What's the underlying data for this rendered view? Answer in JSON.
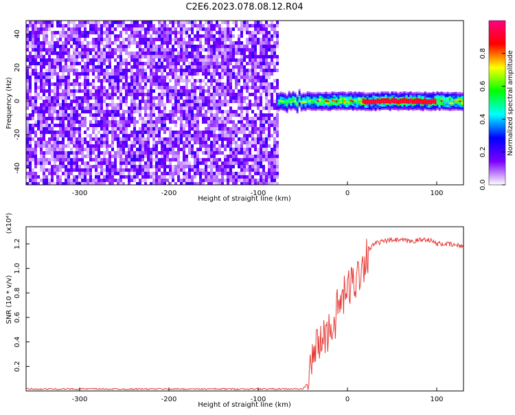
{
  "title": "C2E6.2023.078.08.12.R04",
  "chart_data": [
    {
      "type": "heatmap",
      "xlabel": "Height of straight line (km)",
      "ylabel": "Frequency (Hz)",
      "xlim": [
        -360,
        130
      ],
      "ylim": [
        -50,
        48
      ],
      "x_ticks": [
        -300,
        -200,
        -100,
        0,
        100
      ],
      "y_ticks": [
        -40,
        -20,
        0,
        20,
        40
      ],
      "noise_region": {
        "x_start": -360,
        "x_end": -78,
        "freq_min": -50,
        "freq_max": 48
      },
      "signal_band": {
        "x_start": -78,
        "x_end": 130,
        "freq_center": 0,
        "freq_halfwidth": 3
      },
      "colorbar": {
        "label": "Normalized spectral amplitude",
        "range": [
          0.0,
          1.0
        ],
        "ticks": [
          0.0,
          0.2,
          0.4,
          0.6,
          0.8
        ],
        "colors": [
          "#ffffff",
          "#7b00ff",
          "#0000ff",
          "#00ffff",
          "#00ff00",
          "#ffff00",
          "#ff0000",
          "#ff0080"
        ]
      }
    },
    {
      "type": "line",
      "xlabel": "Height of straight line (km)",
      "ylabel": "SNR (10 * v/v)",
      "y_multiplier": "(x10⁴)",
      "xlim": [
        -360,
        130
      ],
      "ylim": [
        0.0,
        1.34
      ],
      "x_ticks": [
        -300,
        -200,
        -100,
        0,
        100
      ],
      "y_ticks": [
        0.2,
        0.4,
        0.6,
        0.8,
        1.0,
        1.2
      ],
      "color": "#e53935",
      "series": [
        {
          "x": [
            -360,
            -330,
            -300,
            -270,
            -240,
            -200,
            -150,
            -100,
            -60,
            -50,
            -45,
            -40,
            -35,
            -30,
            -25,
            -20,
            -15,
            -10,
            -5,
            0,
            5,
            10,
            15,
            20,
            25,
            30,
            40,
            50,
            60,
            70,
            80,
            90,
            95,
            100,
            110,
            120,
            130
          ],
          "values": [
            0.01,
            0.01,
            0.01,
            0.01,
            0.01,
            0.01,
            0.01,
            0.01,
            0.01,
            0.01,
            0.05,
            0.25,
            0.35,
            0.4,
            0.45,
            0.5,
            0.55,
            0.7,
            0.75,
            0.82,
            0.88,
            0.92,
            1.0,
            1.08,
            1.16,
            1.2,
            1.22,
            1.23,
            1.23,
            1.22,
            1.23,
            1.24,
            1.22,
            1.2,
            1.2,
            1.19,
            1.18
          ]
        }
      ]
    }
  ]
}
